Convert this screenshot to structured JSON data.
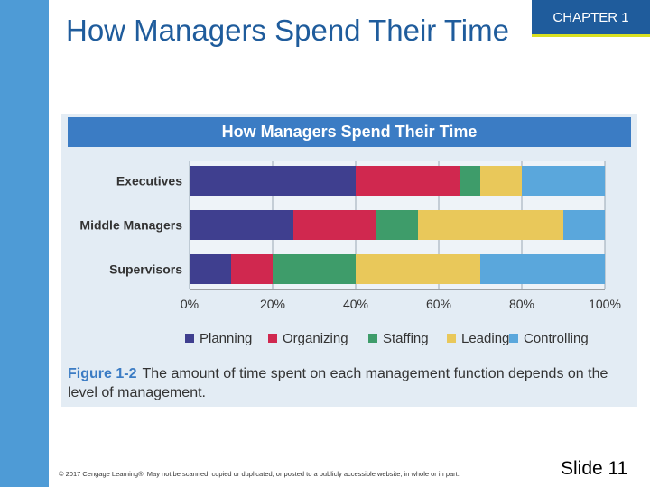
{
  "slide": {
    "title": "How Managers Spend Their Time",
    "chapter": "CHAPTER 1",
    "copyright": "© 2017 Cengage Learning®. May not be scanned, copied or duplicated, or posted to a publicly accessible website, in whole or in part.",
    "slide_number": "Slide 11"
  },
  "figure": {
    "label": "Figure 1-2",
    "caption": "The amount of time spent on each management function depends on the level of management."
  },
  "colors": {
    "accent": "#1f5c9c",
    "sidebar": "#4e9bd6",
    "figure_header": "#3b7cc4"
  },
  "chart_data": {
    "type": "bar",
    "orientation": "horizontal",
    "stacked": true,
    "title": "How Managers Spend Their Time",
    "categories": [
      "Executives",
      "Middle Managers",
      "Supervisors"
    ],
    "series": [
      {
        "name": "Planning",
        "color": "#3f3f8f",
        "values": [
          40,
          25,
          10
        ]
      },
      {
        "name": "Organizing",
        "color": "#d0284f",
        "values": [
          25,
          20,
          10
        ]
      },
      {
        "name": "Staffing",
        "color": "#3e9c6a",
        "values": [
          5,
          10,
          20
        ]
      },
      {
        "name": "Leading",
        "color": "#e9c85a",
        "values": [
          10,
          35,
          30
        ]
      },
      {
        "name": "Controlling",
        "color": "#5aa7dc",
        "values": [
          20,
          10,
          30
        ]
      }
    ],
    "xticks": [
      "0%",
      "20%",
      "40%",
      "60%",
      "80%",
      "100%"
    ],
    "xlim": [
      0,
      100
    ],
    "grid": true,
    "legend": "bottom"
  }
}
